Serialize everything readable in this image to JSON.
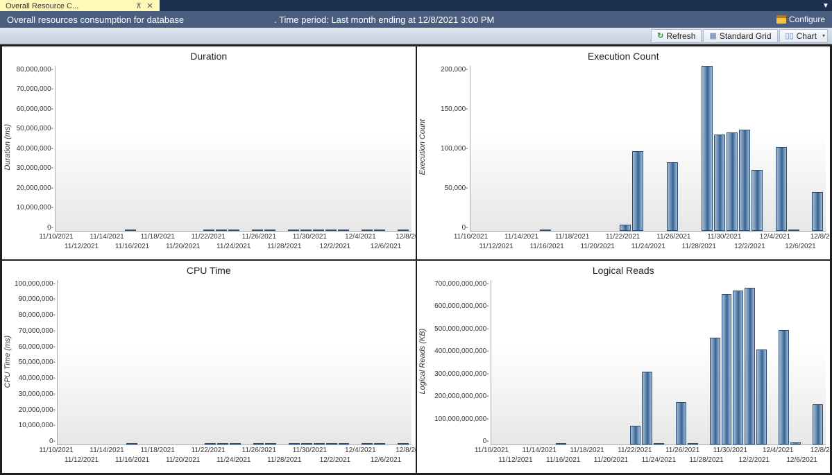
{
  "tab": {
    "label": "Overall Resource C..."
  },
  "info": {
    "left": "Overall resources consumption for database",
    "center": ". Time period: Last month ending at 12/8/2021 3:00 PM",
    "configure": "Configure"
  },
  "toolbar": {
    "refresh": "Refresh",
    "grid": "Standard Grid",
    "chart": "Chart"
  },
  "dates_row1": [
    "11/10/2021",
    "11/14/2021",
    "11/18/2021",
    "11/22/2021",
    "11/26/2021",
    "11/30/2021",
    "12/4/2021",
    "12/8/2021"
  ],
  "dates_row2": [
    "11/12/2021",
    "11/16/2021",
    "11/20/2021",
    "11/24/2021",
    "11/28/2021",
    "12/2/2021",
    "12/6/2021"
  ],
  "charts": {
    "duration": {
      "title": "Duration",
      "ylabel": "Duration (ms)",
      "ymax": 80000000,
      "yticks": [
        "80,000,000",
        "70,000,000",
        "60,000,000",
        "50,000,000",
        "40,000,000",
        "30,000,000",
        "20,000,000",
        "10,000,000",
        "0"
      ],
      "values": [
        0,
        0,
        0,
        0,
        0,
        0,
        4,
        0,
        0,
        0,
        0,
        0,
        0,
        43,
        78,
        1,
        0,
        43,
        1,
        0,
        70,
        66,
        71,
        68,
        43,
        0,
        56,
        1,
        0,
        22
      ]
    },
    "exec": {
      "title": "Execution Count",
      "ylabel": "Execution Count",
      "ymax": 215,
      "yticks": [
        "200,000",
        "150,000",
        "100,000",
        "50,000",
        "0"
      ],
      "values": [
        0,
        0,
        0,
        0,
        0,
        0,
        1,
        0,
        0,
        0,
        0,
        0,
        0,
        8,
        104,
        0,
        0,
        89,
        0,
        0,
        215,
        125,
        128,
        132,
        79,
        0,
        109,
        1,
        0,
        50
      ]
    },
    "cpu": {
      "title": "CPU Time",
      "ylabel": "CPU Time (ms)",
      "ymax": 100000000,
      "yticks": [
        "100,000,000",
        "90,000,000",
        "80,000,000",
        "70,000,000",
        "60,000,000",
        "50,000,000",
        "40,000,000",
        "30,000,000",
        "20,000,000",
        "10,000,000",
        "0"
      ],
      "values": [
        0,
        0,
        0,
        0,
        0,
        0,
        2,
        0,
        0,
        0,
        0,
        0,
        0,
        38,
        97,
        1,
        0,
        49,
        1,
        0,
        70,
        64,
        69,
        64,
        40,
        0,
        57,
        1,
        0,
        28
      ]
    },
    "logical": {
      "title": "Logical Reads",
      "ylabel": "Logical Reads (KB)",
      "ymax": 700,
      "yticks": [
        "700,000,000,000",
        "600,000,000,000",
        "500,000,000,000",
        "400,000,000,000",
        "300,000,000,000",
        "200,000,000,000",
        "100,000,000,000",
        "0"
      ],
      "values": [
        0,
        0,
        0,
        0,
        0,
        0,
        3,
        0,
        0,
        0,
        0,
        0,
        0,
        80,
        310,
        4,
        0,
        180,
        4,
        0,
        455,
        640,
        655,
        665,
        405,
        0,
        485,
        8,
        0,
        170
      ]
    }
  },
  "colors": {
    "titlebar": "#1e3050",
    "tab_bg": "#fff8b8",
    "infobar": "#4a5f80",
    "toolbar_top": "#dfe6ef",
    "toolbar_bot": "#c3cfde",
    "bar_grad_light": "#a6bdd7",
    "bar_grad_mid": "#5d84ad",
    "bar_grad_dark": "#365f8d",
    "grid_border": "#1e1e1e"
  }
}
